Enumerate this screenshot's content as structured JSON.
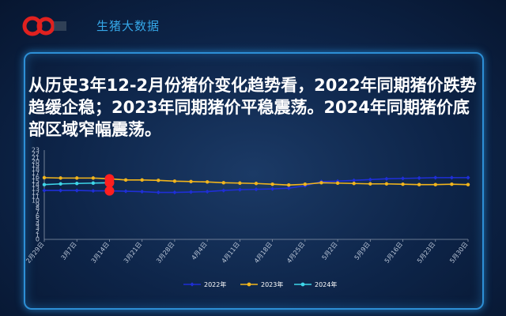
{
  "header": {
    "brand": "生猪大数据",
    "logo_icon": "pig-logo-icon"
  },
  "headline": "从历史3年12-2月份猪价变化趋势看，2022年同期猪价跌势趋缓企稳；2023年同期猪价平稳震荡。2024年同期猪价底部区域窄幅震荡。",
  "chart_data": {
    "type": "line",
    "title": "",
    "xlabel": "",
    "ylabel": "",
    "ylim": [
      0,
      23
    ],
    "yticks": [
      0,
      1,
      2,
      3,
      4,
      5,
      6,
      7,
      8,
      9,
      10,
      11,
      12,
      13,
      14,
      15,
      16,
      17,
      18,
      19,
      20,
      21,
      22,
      23
    ],
    "x_ticks": [
      "2月29日",
      "3月7日",
      "3月14日",
      "3月21日",
      "3月28日",
      "4月4日",
      "4月11日",
      "4月18日",
      "4月25日",
      "5月2日",
      "5月9日",
      "5月16日",
      "5月23日",
      "5月30日"
    ],
    "legend_position": "bottom",
    "grid": false,
    "series": [
      {
        "name": "2022年",
        "color": "#1f2fd6",
        "marker": "diamond",
        "values": [
          12.6,
          12.6,
          12.6,
          12.5,
          12.5,
          12.4,
          12.3,
          12.1,
          12.1,
          12.2,
          12.3,
          12.6,
          12.8,
          12.9,
          13.0,
          13.2,
          13.8,
          14.9,
          15.0,
          15.2,
          15.4,
          15.6,
          15.7,
          15.8,
          15.9,
          15.9,
          15.9
        ]
      },
      {
        "name": "2023年",
        "color": "#f2b51c",
        "marker": "circle",
        "values": [
          15.9,
          15.8,
          15.8,
          15.8,
          15.6,
          15.3,
          15.3,
          15.2,
          15.0,
          14.9,
          14.8,
          14.6,
          14.5,
          14.4,
          14.2,
          14.0,
          14.2,
          14.6,
          14.5,
          14.4,
          14.3,
          14.3,
          14.2,
          14.1,
          14.1,
          14.2,
          14.1
        ]
      },
      {
        "name": "2024年",
        "color": "#3ed6e8",
        "marker": "circle",
        "values": [
          14.1,
          14.3,
          14.4,
          14.5,
          14.6
        ]
      }
    ],
    "highlight_points": [
      {
        "series": "2023年",
        "x_index": 4,
        "value": 15.6,
        "color": "#ff1f1f"
      },
      {
        "series": "2024年",
        "x_index": 4,
        "value": 14.6,
        "color": "#ff1f1f"
      },
      {
        "series": "2022年",
        "x_index": 4,
        "value": 12.5,
        "color": "#ff1f1f"
      }
    ]
  }
}
